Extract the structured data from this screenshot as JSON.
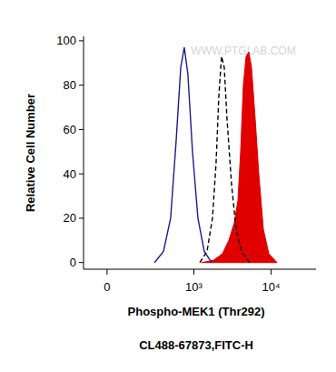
{
  "chart_data": {
    "type": "line",
    "x_label": "Phospho-MEK1 (Thr292)",
    "y_label": "Relative Cell Number",
    "subtitle": "CL488-67873,FITC-H",
    "annotations": [
      "WWW.PTGLAB.COM"
    ],
    "log": "x",
    "xlim": [
      -115,
      38000
    ],
    "xticks": [
      0,
      {
        "value": 1000,
        "label": "10³"
      },
      {
        "value": 10000,
        "label": "10⁴"
      }
    ],
    "ylim": [
      -3,
      102
    ],
    "yticks": [
      0,
      20,
      40,
      60,
      80,
      100
    ],
    "grid": false,
    "series": [
      {
        "type": "line",
        "color": "#1c1c8f",
        "line_style": "solid",
        "x": [
          293,
          393,
          492,
          584,
          672,
          748,
          834,
          959,
          1129,
          1366,
          1698
        ],
        "values": [
          0,
          5,
          20,
          55,
          88,
          97,
          85,
          50,
          20,
          5,
          0
        ]
      },
      {
        "type": "line",
        "color": "#000000",
        "line_style": "dashed",
        "x": [
          1195,
          1482,
          1744,
          1943,
          2110,
          2286,
          2479,
          2689,
          3083,
          3527,
          4150,
          5290
        ],
        "values": [
          0,
          5,
          20,
          45,
          75,
          93,
          88,
          65,
          35,
          15,
          5,
          0
        ]
      },
      {
        "type": "area",
        "color": "#e00000",
        "line_style": "solid",
        "x": [
          1257,
          1791,
          2349,
          2841,
          3342,
          3724,
          4036,
          4377,
          4748,
          5150,
          5580,
          6220,
          6930,
          7940,
          9330,
          11900
        ],
        "values": [
          0,
          1,
          4,
          10,
          18,
          28,
          50,
          80,
          93,
          95,
          88,
          65,
          40,
          15,
          4,
          0
        ]
      }
    ]
  }
}
